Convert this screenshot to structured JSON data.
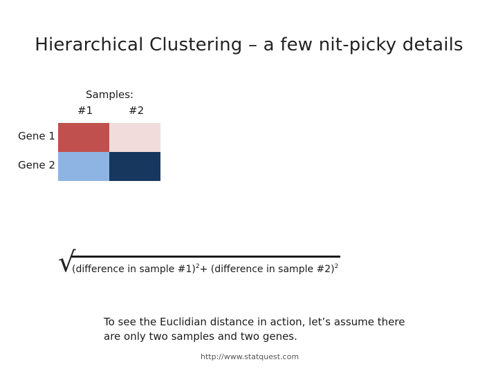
{
  "title": "Hierarchical Clustering – a few nit-picky details",
  "samples": {
    "label": "Samples:",
    "columns": [
      "#1",
      "#2"
    ]
  },
  "genes": [
    "Gene 1",
    "Gene 2"
  ],
  "heatmap": {
    "colors": [
      [
        "#c0504d",
        "#f2dcdb"
      ],
      [
        "#8eb4e3",
        "#17375e"
      ]
    ]
  },
  "formula": {
    "part1": "(difference in sample #1)",
    "exp1": "2",
    "plus": "+ ",
    "part2": "(difference in sample #2)",
    "exp2": "2"
  },
  "note": "To see the Euclidian distance in action, let’s assume there are only two samples and two genes.",
  "url": "http://www.statquest.com"
}
